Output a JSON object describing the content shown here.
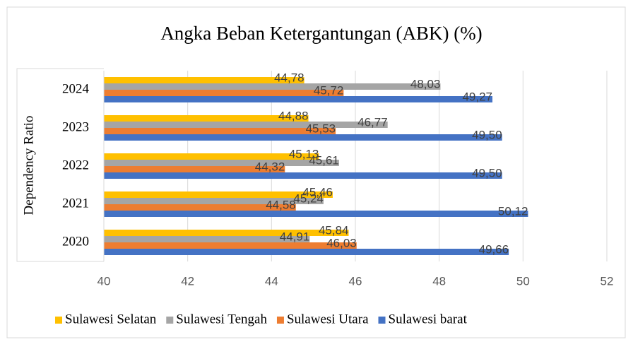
{
  "chart_data": {
    "type": "hbar",
    "title": "Angka Beban Ketergantungan (ABK) (%)",
    "y_label": "Dependency Ratio",
    "categories": [
      "2020",
      "2021",
      "2022",
      "2023",
      "2024"
    ],
    "series": [
      {
        "name": "Sulawesi Selatan",
        "color": "#FFC000",
        "values": [
          45.84,
          45.46,
          45.13,
          44.88,
          44.78
        ],
        "value_labels": [
          "45,84",
          "45,46",
          "45,13",
          "44,88",
          "44,78"
        ]
      },
      {
        "name": "Sulawesi Tengah",
        "color": "#A5A5A5",
        "values": [
          44.91,
          45.24,
          45.61,
          46.77,
          48.03
        ],
        "value_labels": [
          "44,91",
          "45,24",
          "45,61",
          "46,77",
          "48,03"
        ]
      },
      {
        "name": "Sulawesi Utara",
        "color": "#ED7D31",
        "values": [
          46.03,
          44.58,
          44.32,
          45.53,
          45.72
        ],
        "value_labels": [
          "46,03",
          "44,58",
          "44,32",
          "45,53",
          "45,72"
        ]
      },
      {
        "name": "Sulawesi barat",
        "color": "#4472C4",
        "values": [
          49.66,
          50.12,
          49.5,
          49.5,
          49.27
        ],
        "value_labels": [
          "49,66",
          "50,12",
          "49,50",
          "49,50",
          "49,27"
        ]
      }
    ],
    "xlim": [
      40,
      52
    ],
    "xticks": [
      40,
      42,
      44,
      46,
      48,
      50,
      52
    ],
    "grid": true,
    "legend": "bottom"
  }
}
